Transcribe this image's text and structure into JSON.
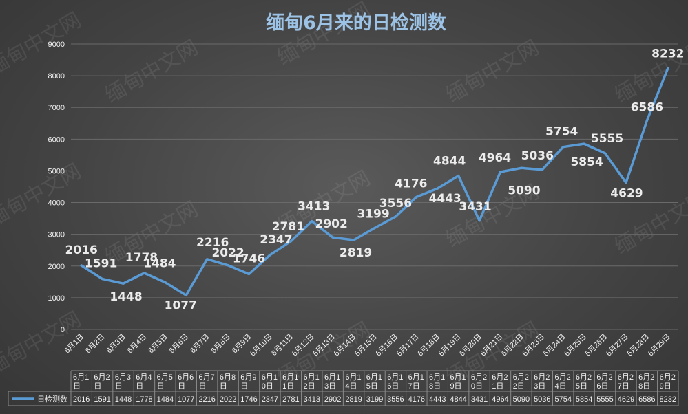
{
  "colors": {
    "background": "#454545",
    "line": "#5b9bd5",
    "title": "#9cc3e6",
    "gridline": "#6a6a6a",
    "text": "#f2f2f2"
  },
  "watermark": "缅甸中文网",
  "chart_data": {
    "type": "line",
    "title": "缅甸6月来的日检测数",
    "xlabel": "",
    "ylabel": "",
    "ylim": [
      0,
      9000
    ],
    "yticks": [
      "0",
      "1000",
      "2000",
      "3000",
      "4000",
      "5000",
      "6000",
      "7000",
      "8000",
      "9000"
    ],
    "grid": true,
    "legend_position": "bottom (data table)",
    "categories": [
      "6月1日",
      "6月2日",
      "6月3日",
      "6月4日",
      "6月5日",
      "6月6日",
      "6月7日",
      "6月8日",
      "6月9日",
      "6月10日",
      "6月11日",
      "6月12日",
      "6月13日",
      "6月14日",
      "6月15日",
      "6月16日",
      "6月17日",
      "6月18日",
      "6月19日",
      "6月20日",
      "6月21日",
      "6月22日",
      "6月23日",
      "6月24日",
      "6月25日",
      "6月26日",
      "6月27日",
      "6月28日",
      "6月29日"
    ],
    "table_dates": [
      [
        "6月1",
        "日"
      ],
      [
        "6月2",
        "日"
      ],
      [
        "6月3",
        "日"
      ],
      [
        "6月4",
        "日"
      ],
      [
        "6月5",
        "日"
      ],
      [
        "6月6",
        "日"
      ],
      [
        "6月7",
        "日"
      ],
      [
        "6月8",
        "日"
      ],
      [
        "6月9",
        "日"
      ],
      [
        "6月1",
        "0日"
      ],
      [
        "6月1",
        "1日"
      ],
      [
        "6月1",
        "2日"
      ],
      [
        "6月1",
        "3日"
      ],
      [
        "6月1",
        "4日"
      ],
      [
        "6月1",
        "5日"
      ],
      [
        "6月1",
        "6日"
      ],
      [
        "6月1",
        "7日"
      ],
      [
        "6月1",
        "8日"
      ],
      [
        "6月1",
        "9日"
      ],
      [
        "6月2",
        "0日"
      ],
      [
        "6月2",
        "1日"
      ],
      [
        "6月2",
        "2日"
      ],
      [
        "6月2",
        "3日"
      ],
      [
        "6月2",
        "4日"
      ],
      [
        "6月2",
        "5日"
      ],
      [
        "6月2",
        "6日"
      ],
      [
        "6月2",
        "7日"
      ],
      [
        "6月2",
        "8日"
      ],
      [
        "6月2",
        "9日"
      ]
    ],
    "series": [
      {
        "name": "日检测数",
        "values": [
          2016,
          1591,
          1448,
          1778,
          1484,
          1077,
          2216,
          2022,
          1746,
          2347,
          2781,
          3413,
          2902,
          2819,
          3199,
          3556,
          4176,
          4443,
          4844,
          3431,
          4964,
          5090,
          5036,
          5754,
          5854,
          5555,
          4629,
          6586,
          8232
        ],
        "labels": [
          "2016",
          "1591",
          "1448",
          "1778",
          "1484",
          "1077",
          "2216",
          "2022",
          "1746",
          "2347",
          "2781",
          "3413",
          "2902",
          "2819",
          "3199",
          "3556",
          "4176",
          "4443",
          "4844",
          "3431",
          "4964",
          "5090",
          "5036",
          "5754",
          "5854",
          "5555",
          "4629",
          "6586",
          "8232"
        ]
      }
    ]
  }
}
